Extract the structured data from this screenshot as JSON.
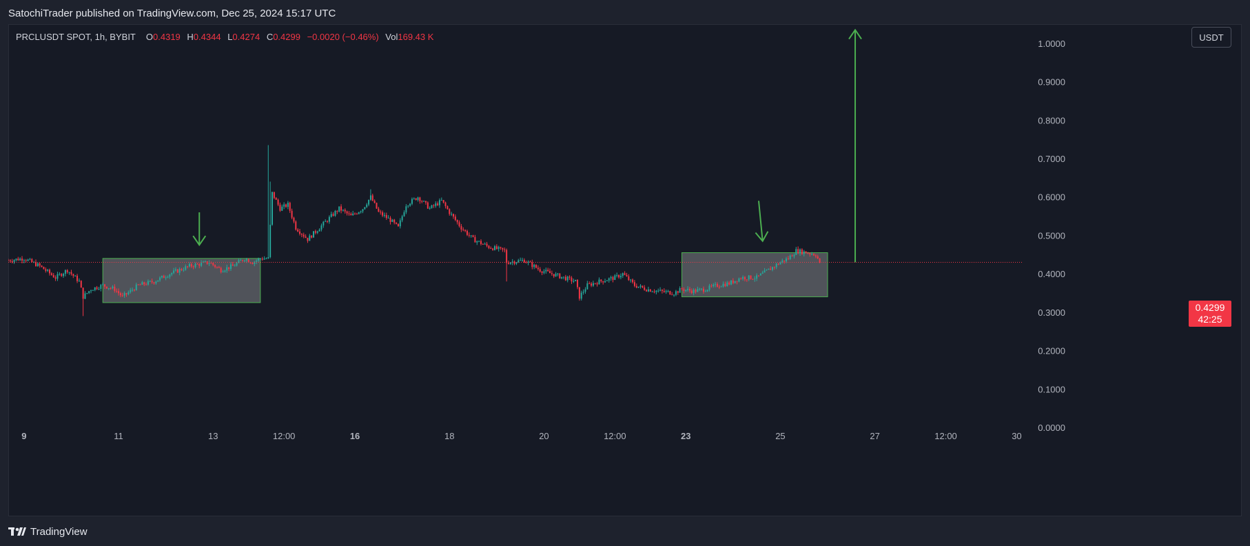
{
  "header": {
    "published_by": "SatochiTrader published on TradingView.com, Dec 25, 2024 15:17 UTC"
  },
  "legend": {
    "symbol": "PRCLUSDT SPOT, 1h, BYBIT",
    "open_label": "O",
    "open": "0.4319",
    "high_label": "H",
    "high": "0.4344",
    "low_label": "L",
    "low": "0.4274",
    "close_label": "C",
    "close": "0.4299",
    "change": "−0.0020 (−0.46%)",
    "vol_label": "Vol",
    "vol": "169.43 K"
  },
  "currency_button": "USDT",
  "price_tag": {
    "price": "0.4299",
    "countdown": "42:25"
  },
  "footer": {
    "brand": "TradingView"
  },
  "colors": {
    "up": "#26a69a",
    "down": "#f23645",
    "annotation": "#4caf50",
    "background": "#161a25"
  },
  "chart_data": {
    "type": "candlestick",
    "ylim": [
      0,
      1.05
    ],
    "y_ticks": [
      "0.0000",
      "0.1000",
      "0.2000",
      "0.3000",
      "0.4000",
      "0.5000",
      "0.6000",
      "0.7000",
      "0.8000",
      "0.9000",
      "1.0000"
    ],
    "x_ticks": [
      {
        "label": "9",
        "t": 0,
        "bold": true
      },
      {
        "label": "11",
        "t": 48,
        "bold": false
      },
      {
        "label": "13",
        "t": 96,
        "bold": false
      },
      {
        "label": "12:00",
        "t": 132,
        "bold": false
      },
      {
        "label": "16",
        "t": 168,
        "bold": true
      },
      {
        "label": "18",
        "t": 216,
        "bold": false
      },
      {
        "label": "20",
        "t": 264,
        "bold": false
      },
      {
        "label": "12:00",
        "t": 300,
        "bold": false
      },
      {
        "label": "23",
        "t": 336,
        "bold": true
      },
      {
        "label": "25",
        "t": 384,
        "bold": false
      },
      {
        "label": "27",
        "t": 432,
        "bold": false
      },
      {
        "label": "12:00",
        "t": 468,
        "bold": false
      },
      {
        "label": "30",
        "t": 504,
        "bold": false
      }
    ],
    "t_range": [
      -8,
      507
    ],
    "last_price": 0.4299,
    "price_anchors": [
      [
        -8,
        0.435
      ],
      [
        0,
        0.44
      ],
      [
        8,
        0.42
      ],
      [
        16,
        0.39
      ],
      [
        22,
        0.41
      ],
      [
        28,
        0.38
      ],
      [
        30,
        0.34
      ],
      [
        34,
        0.36
      ],
      [
        40,
        0.37
      ],
      [
        46,
        0.36
      ],
      [
        50,
        0.34
      ],
      [
        58,
        0.37
      ],
      [
        66,
        0.38
      ],
      [
        74,
        0.4
      ],
      [
        84,
        0.42
      ],
      [
        94,
        0.43
      ],
      [
        100,
        0.41
      ],
      [
        106,
        0.42
      ],
      [
        112,
        0.44
      ],
      [
        116,
        0.43
      ],
      [
        120,
        0.44
      ],
      [
        124,
        0.44
      ],
      [
        126,
        0.61
      ],
      [
        130,
        0.57
      ],
      [
        134,
        0.58
      ],
      [
        138,
        0.52
      ],
      [
        144,
        0.49
      ],
      [
        150,
        0.52
      ],
      [
        160,
        0.57
      ],
      [
        166,
        0.55
      ],
      [
        172,
        0.57
      ],
      [
        176,
        0.6
      ],
      [
        180,
        0.56
      ],
      [
        186,
        0.54
      ],
      [
        190,
        0.52
      ],
      [
        194,
        0.58
      ],
      [
        200,
        0.6
      ],
      [
        206,
        0.57
      ],
      [
        212,
        0.59
      ],
      [
        216,
        0.56
      ],
      [
        222,
        0.52
      ],
      [
        228,
        0.49
      ],
      [
        236,
        0.47
      ],
      [
        244,
        0.46
      ],
      [
        245,
        0.43
      ],
      [
        254,
        0.435
      ],
      [
        262,
        0.41
      ],
      [
        268,
        0.4
      ],
      [
        274,
        0.39
      ],
      [
        280,
        0.38
      ],
      [
        282,
        0.34
      ],
      [
        286,
        0.37
      ],
      [
        292,
        0.38
      ],
      [
        300,
        0.39
      ],
      [
        304,
        0.4
      ],
      [
        310,
        0.37
      ],
      [
        316,
        0.36
      ],
      [
        322,
        0.355
      ],
      [
        330,
        0.35
      ],
      [
        334,
        0.36
      ],
      [
        340,
        0.355
      ],
      [
        346,
        0.36
      ],
      [
        352,
        0.37
      ],
      [
        358,
        0.375
      ],
      [
        364,
        0.39
      ],
      [
        372,
        0.39
      ],
      [
        378,
        0.41
      ],
      [
        384,
        0.43
      ],
      [
        388,
        0.44
      ],
      [
        392,
        0.46
      ],
      [
        398,
        0.455
      ],
      [
        402,
        0.45
      ],
      [
        404,
        0.4299
      ]
    ],
    "annotations": {
      "zones": [
        {
          "t0": 40,
          "t1": 120,
          "y0": 0.325,
          "y1": 0.44
        },
        {
          "t0": 334,
          "t1": 408,
          "y0": 0.34,
          "y1": 0.455
        }
      ],
      "arrows": [
        {
          "t0": 89,
          "y0": 0.56,
          "t1": 89,
          "y1": 0.475
        },
        {
          "t0": 373,
          "y0": 0.59,
          "t1": 375,
          "y1": 0.485
        },
        {
          "t0": 422,
          "y0": 0.43,
          "t1": 422,
          "y1": 1.035
        }
      ]
    }
  }
}
